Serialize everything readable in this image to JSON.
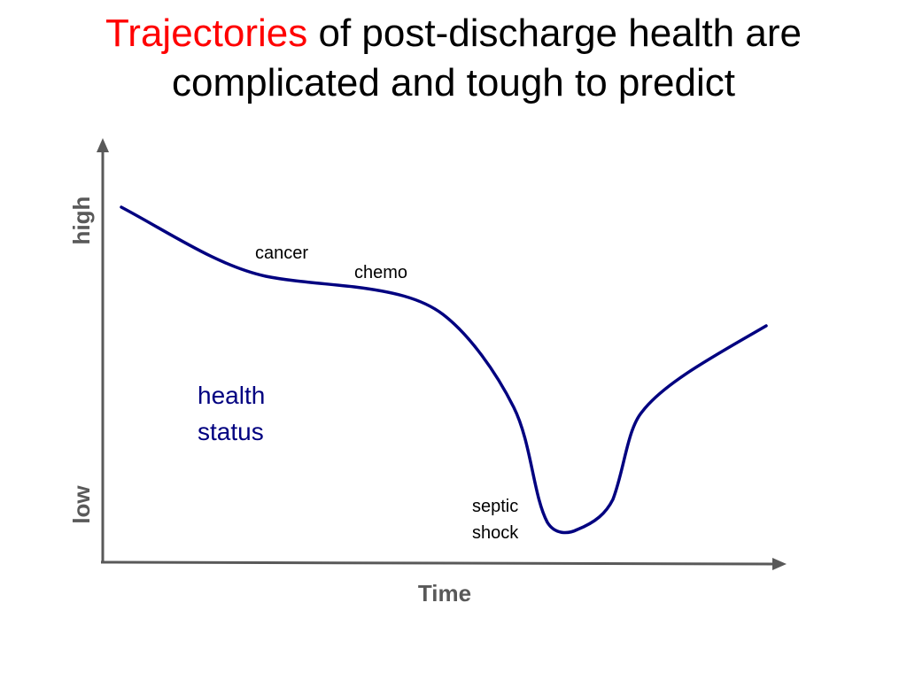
{
  "title": {
    "highlight": "Trajectories",
    "rest_line1": " of post-discharge health are",
    "line2": "complicated and tough to predict"
  },
  "colors": {
    "title_highlight": "#ff0000",
    "title_text": "#000000",
    "curve": "#000080",
    "axes": "#595959",
    "annotation_text": "#000000"
  },
  "diagram": {
    "x_axis_label": "Time",
    "y_axis_high_label": "high",
    "y_axis_low_label": "low",
    "series_label_line1": "health",
    "series_label_line2": "status",
    "annotations": {
      "cancer": "cancer",
      "chemo": "chemo",
      "septic": "septic",
      "shock": "shock"
    }
  }
}
